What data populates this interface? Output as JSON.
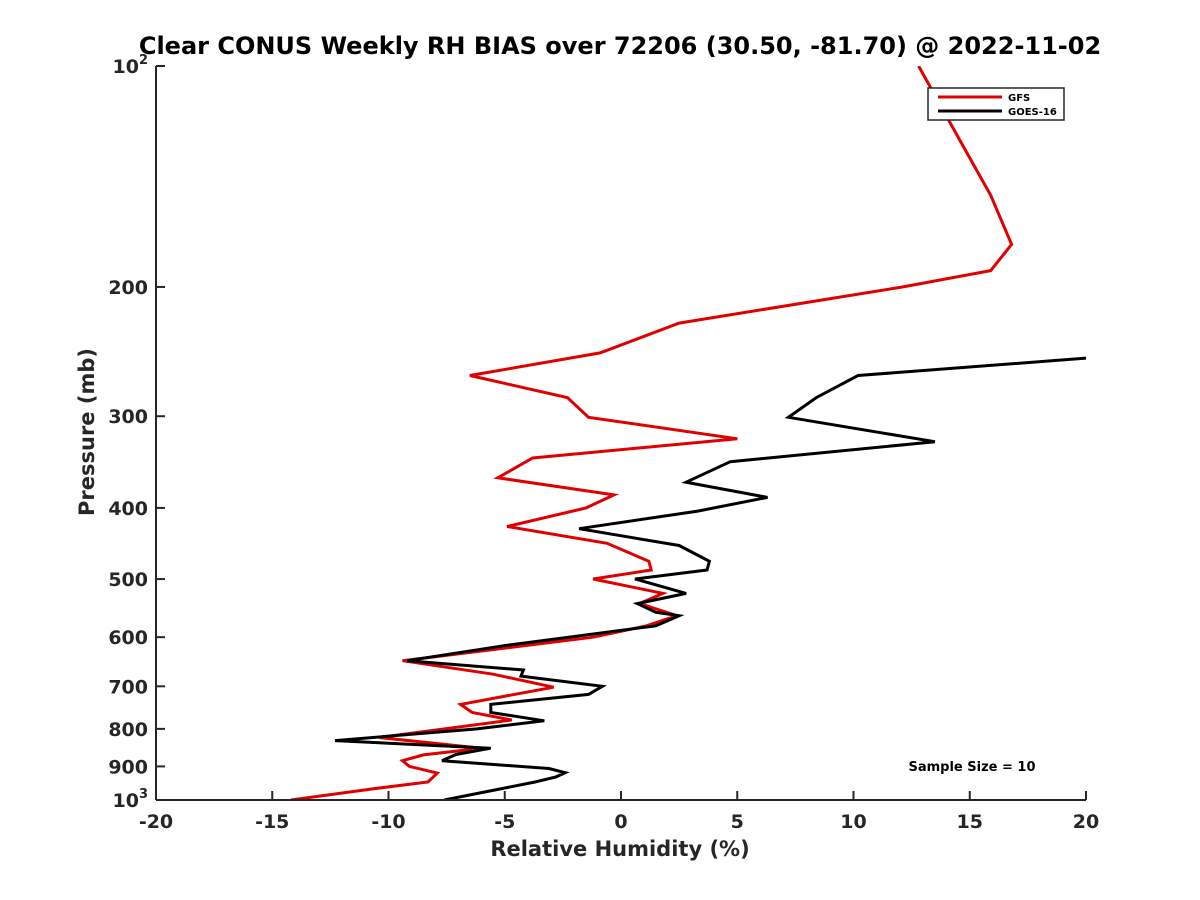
{
  "chart_data": {
    "type": "line",
    "title": "Clear CONUS Weekly RH BIAS over 72206 (30.50, -81.70) @ 2022-11-02",
    "xlabel": "Relative Humidity (%)",
    "ylabel": "Pressure (mb)",
    "xlim": [
      -20,
      20
    ],
    "ylim": [
      100,
      1000
    ],
    "y_scale": "log",
    "y_reversed": true,
    "grid": false,
    "legend_position": "top-right",
    "x_ticks": [
      -20,
      -15,
      -10,
      -5,
      0,
      5,
      10,
      15,
      20
    ],
    "x_tick_labels": [
      "-20",
      "-15",
      "-10",
      "-5",
      "0",
      "5",
      "10",
      "15",
      "20"
    ],
    "y_ticks": [
      {
        "value": 100,
        "base": "10",
        "exp": "2",
        "label": ""
      },
      {
        "value": 200,
        "base": "",
        "exp": "",
        "label": "200"
      },
      {
        "value": 300,
        "base": "",
        "exp": "",
        "label": "300"
      },
      {
        "value": 400,
        "base": "",
        "exp": "",
        "label": "400"
      },
      {
        "value": 500,
        "base": "",
        "exp": "",
        "label": "500"
      },
      {
        "value": 600,
        "base": "",
        "exp": "",
        "label": "600"
      },
      {
        "value": 700,
        "base": "",
        "exp": "",
        "label": "700"
      },
      {
        "value": 800,
        "base": "",
        "exp": "",
        "label": "800"
      },
      {
        "value": 900,
        "base": "",
        "exp": "",
        "label": "900"
      },
      {
        "value": 1000,
        "base": "10",
        "exp": "3",
        "label": ""
      }
    ],
    "annotation": "Sample Size = 10",
    "series": [
      {
        "name": "GFS",
        "color": "#e00000",
        "points": [
          [
            12.8,
            100
          ],
          [
            14.5,
            125
          ],
          [
            15.9,
            150
          ],
          [
            16.8,
            175
          ],
          [
            15.9,
            190
          ],
          [
            12.1,
            200
          ],
          [
            2.5,
            224
          ],
          [
            -0.9,
            246
          ],
          [
            -6.5,
            264
          ],
          [
            -2.3,
            283
          ],
          [
            -1.4,
            301
          ],
          [
            5.0,
            322
          ],
          [
            -3.8,
            342
          ],
          [
            -5.3,
            364
          ],
          [
            -0.3,
            384
          ],
          [
            -1.5,
            400
          ],
          [
            -4.9,
            424
          ],
          [
            -0.6,
            447
          ],
          [
            1.2,
            473
          ],
          [
            1.3,
            486
          ],
          [
            -1.2,
            500
          ],
          [
            1.8,
            523
          ],
          [
            0.8,
            540
          ],
          [
            2.4,
            561
          ],
          [
            1.1,
            579
          ],
          [
            -1.2,
            600
          ],
          [
            -9.4,
            646
          ],
          [
            -5.5,
            674
          ],
          [
            -2.9,
            702
          ],
          [
            -6.9,
            741
          ],
          [
            -6.4,
            760
          ],
          [
            -4.7,
            778
          ],
          [
            -10.4,
            822
          ],
          [
            -6.0,
            850
          ],
          [
            -8.5,
            868
          ],
          [
            -9.4,
            884
          ],
          [
            -9.1,
            900
          ],
          [
            -7.9,
            919
          ],
          [
            -8.3,
            945
          ],
          [
            -10.6,
            965
          ],
          [
            -14.2,
            1000
          ]
        ]
      },
      {
        "name": "GOES-16",
        "color": "#000000",
        "points": [
          [
            20.0,
            250
          ],
          [
            10.2,
            264
          ],
          [
            8.4,
            283
          ],
          [
            7.2,
            301
          ],
          [
            13.5,
            325
          ],
          [
            4.7,
            346
          ],
          [
            2.8,
            369
          ],
          [
            6.3,
            387
          ],
          [
            3.3,
            404
          ],
          [
            -1.8,
            427
          ],
          [
            2.5,
            450
          ],
          [
            3.8,
            473
          ],
          [
            3.7,
            486
          ],
          [
            0.6,
            500
          ],
          [
            2.8,
            523
          ],
          [
            0.7,
            540
          ],
          [
            1.5,
            555
          ],
          [
            2.5,
            561
          ],
          [
            1.5,
            579
          ],
          [
            -5.0,
            616
          ],
          [
            -9.2,
            646
          ],
          [
            -4.2,
            665
          ],
          [
            -4.3,
            678
          ],
          [
            -0.8,
            700
          ],
          [
            -1.4,
            718
          ],
          [
            -5.6,
            741
          ],
          [
            -5.6,
            760
          ],
          [
            -3.3,
            780
          ],
          [
            -6.2,
            800
          ],
          [
            -12.3,
            830
          ],
          [
            -5.6,
            850
          ],
          [
            -7.1,
            867
          ],
          [
            -7.7,
            884
          ],
          [
            -3.1,
            906
          ],
          [
            -2.4,
            918
          ],
          [
            -2.8,
            930
          ],
          [
            -3.7,
            945
          ],
          [
            -7.6,
            1000
          ]
        ]
      }
    ]
  }
}
